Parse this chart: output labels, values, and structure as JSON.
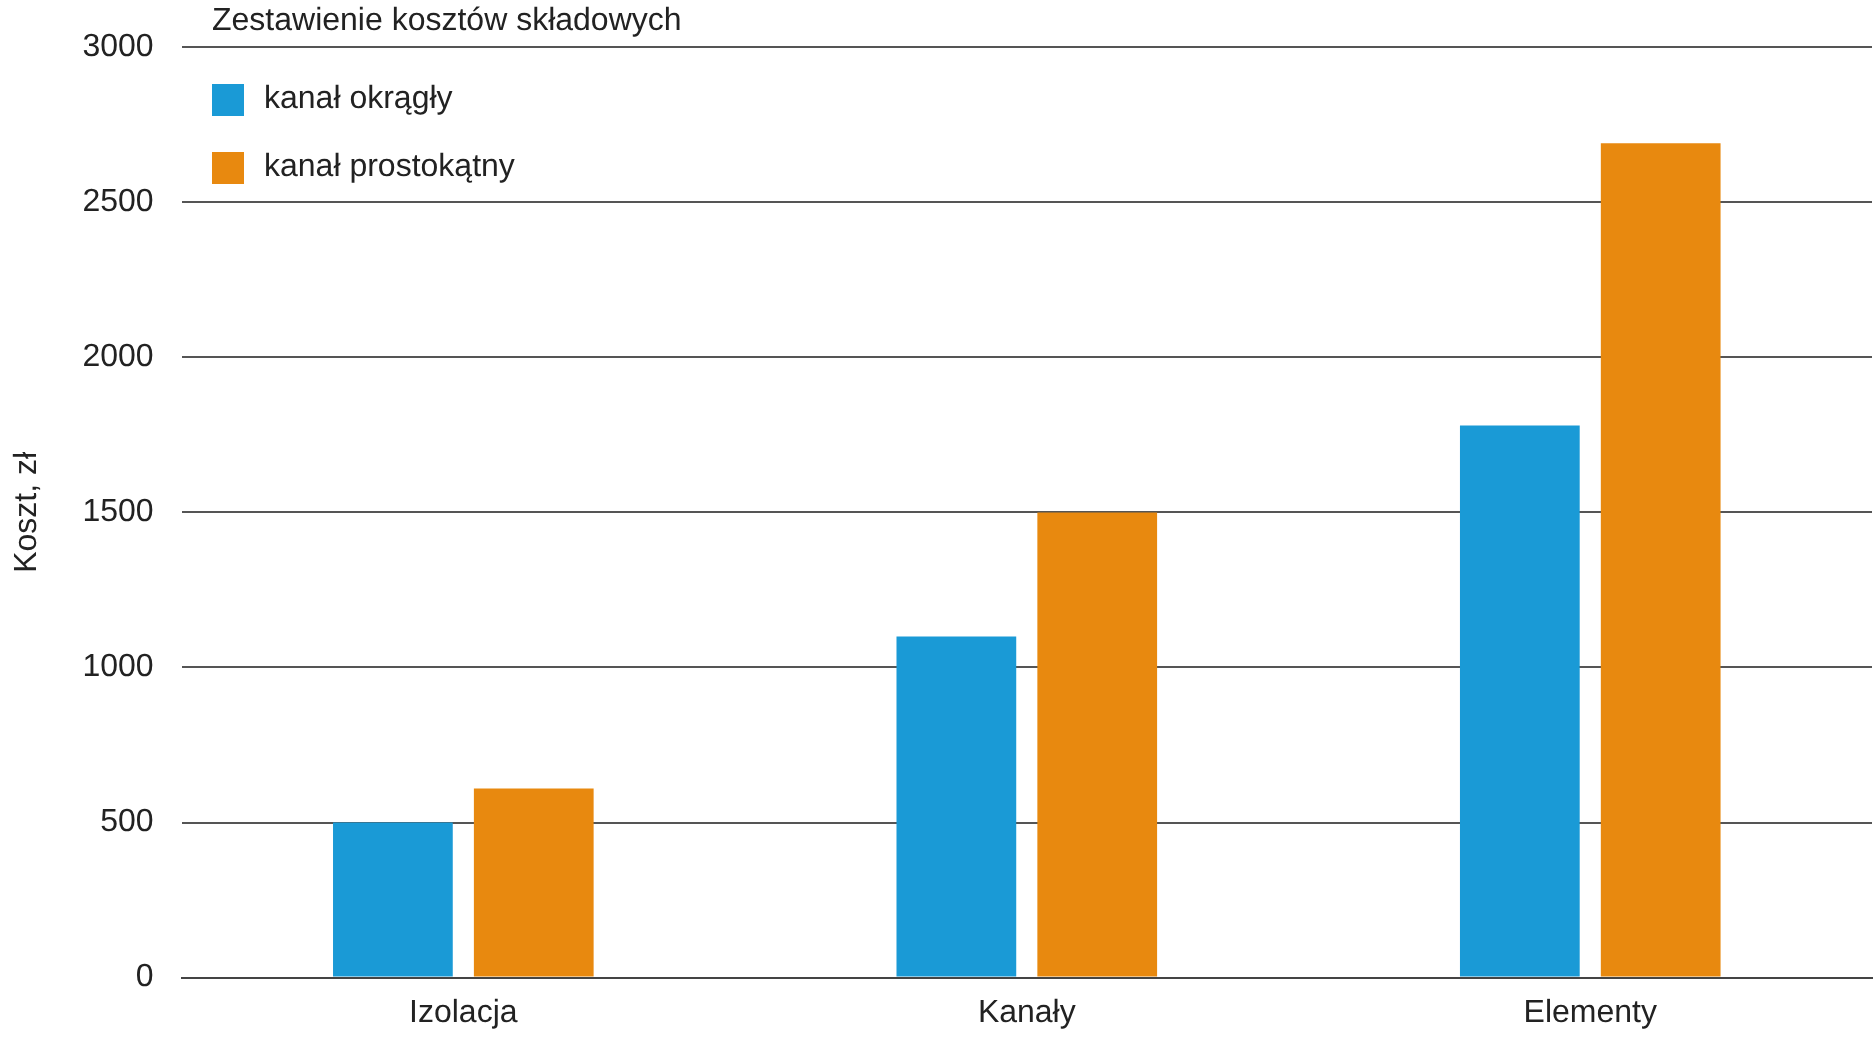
{
  "chart_data": {
    "type": "bar",
    "title": "Zestawienie kosztów składowych",
    "ylabel": "Koszt, zł",
    "categories": [
      "Izolacja",
      "Kanały",
      "Elementy"
    ],
    "series": [
      {
        "name": "kanał okrągły",
        "color": "#1a9ad6",
        "values": [
          500,
          1100,
          1780
        ]
      },
      {
        "name": "kanał prostokątny",
        "color": "#e8890f",
        "values": [
          610,
          1500,
          2690
        ]
      }
    ],
    "ylim": [
      0,
      3000
    ],
    "yticks": [
      0,
      500,
      1000,
      1500,
      2000,
      2500,
      3000
    ],
    "grid": "y",
    "legend": "top left"
  }
}
